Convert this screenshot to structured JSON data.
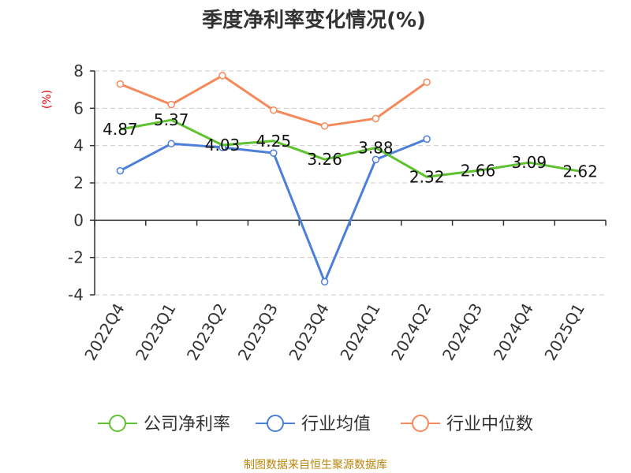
{
  "colors": {
    "company": "#5ec22e",
    "industry_avg": "#4b7fd9",
    "industry_median": "#f5895a",
    "ylabel": "#e60000",
    "source": "#b8860b",
    "grid": "#cccccc",
    "axis": "#333333"
  },
  "chart_data": {
    "type": "line",
    "title": "季度净利率变化情况(%)",
    "ylabel": "(%)",
    "xlabel": "",
    "ylim": [
      -4,
      8
    ],
    "yticks": [
      8,
      6,
      4,
      2,
      0,
      -2,
      -4
    ],
    "grid": "horizontal-dashed",
    "legend_position": "bottom",
    "categories": [
      "2022Q4",
      "2023Q1",
      "2023Q2",
      "2023Q3",
      "2023Q4",
      "2024Q1",
      "2024Q2",
      "2024Q3",
      "2024Q4",
      "2025Q1"
    ],
    "series": [
      {
        "name": "公司净利率",
        "color_key": "company",
        "markers": false,
        "data_labels": true,
        "values": [
          4.87,
          5.37,
          4.03,
          4.25,
          3.26,
          3.88,
          2.32,
          2.66,
          3.09,
          2.62
        ],
        "labels": [
          "4.87",
          "5.37",
          "4.03",
          "4.25",
          "3.26",
          "3.88",
          "2.32",
          "2.66",
          "3.09",
          "2.62"
        ]
      },
      {
        "name": "行业均值",
        "color_key": "industry_avg",
        "markers": true,
        "data_labels": false,
        "values": [
          2.65,
          4.1,
          3.9,
          3.6,
          -3.3,
          3.25,
          4.35,
          null,
          null,
          null
        ]
      },
      {
        "name": "行业中位数",
        "color_key": "industry_median",
        "markers": true,
        "data_labels": false,
        "values": [
          7.3,
          6.2,
          7.75,
          5.9,
          5.05,
          5.45,
          7.4,
          null,
          null,
          null
        ]
      }
    ]
  },
  "source": "制图数据来自恒生聚源数据库"
}
